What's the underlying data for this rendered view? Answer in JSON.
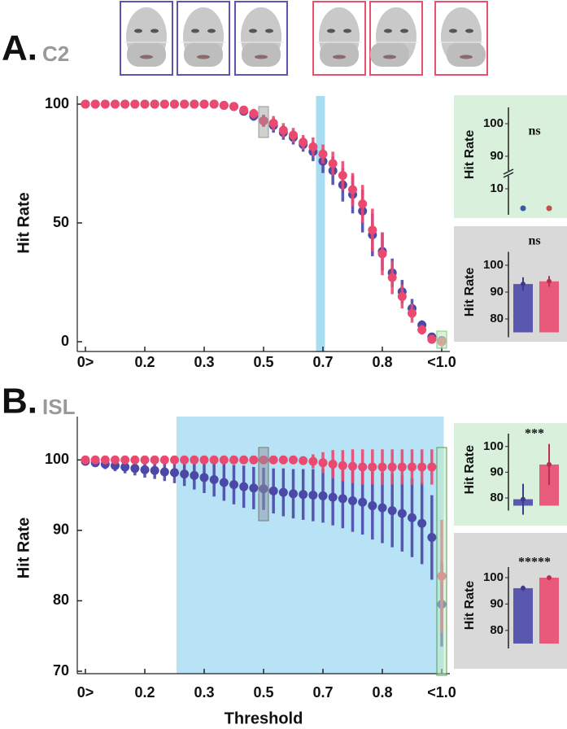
{
  "panels": [
    {
      "letter": "A.",
      "name": "C2"
    },
    {
      "letter": "B.",
      "name": "ISL"
    }
  ],
  "chart_data": [
    {
      "type": "line",
      "ylabel": "Hit Rate",
      "categories": [
        "0>",
        null,
        null,
        null,
        null,
        null,
        "0.2",
        null,
        null,
        null,
        null,
        null,
        "0.3",
        null,
        null,
        null,
        null,
        null,
        "0.5",
        null,
        null,
        null,
        null,
        null,
        "0.7",
        null,
        null,
        null,
        null,
        null,
        "0.8",
        null,
        null,
        null,
        null,
        null,
        "<1.0"
      ],
      "ylim": [
        0,
        100
      ],
      "yticks": [
        0,
        50,
        100
      ],
      "series": [
        {
          "color": "#4b48a8",
          "values": [
            100,
            100,
            100,
            100,
            100,
            100,
            100,
            100,
            100,
            100,
            100,
            100,
            100,
            100,
            99.5,
            99,
            97,
            95,
            93,
            91,
            88,
            86,
            83,
            80,
            76,
            72,
            66,
            62,
            55,
            45,
            38,
            29,
            21,
            14,
            7,
            2,
            0.5
          ],
          "errors": [
            0,
            0,
            0,
            0,
            0,
            0,
            0,
            0,
            0,
            0,
            0,
            0,
            0,
            0,
            0.5,
            1,
            1.5,
            2,
            2.5,
            3,
            3,
            3,
            3,
            4,
            5,
            6,
            7,
            8,
            9,
            9,
            8,
            6,
            5,
            4,
            2,
            1,
            0.5
          ]
        },
        {
          "color": "#ea4a6f",
          "values": [
            100,
            100,
            100,
            100,
            100,
            100,
            100,
            100,
            100,
            100,
            100,
            100,
            100,
            100,
            99.5,
            99,
            97.5,
            96,
            93,
            92,
            89,
            87,
            84,
            82,
            79,
            75,
            70,
            64,
            58,
            47,
            37,
            27,
            19,
            12,
            5,
            1,
            0
          ],
          "errors": [
            0,
            0,
            0,
            0,
            0,
            0,
            0,
            0,
            0,
            0,
            0,
            0,
            0,
            0,
            0.5,
            1,
            1.5,
            2,
            2.5,
            3,
            3,
            3,
            3,
            4,
            4,
            5,
            6,
            7,
            8,
            9,
            9,
            7,
            5,
            4,
            2,
            1,
            0.5
          ]
        }
      ]
    },
    {
      "type": "dot",
      "ylabel": "Hit Rate",
      "annotation": "ns",
      "ylim": [
        0,
        105
      ],
      "ybreak": [
        12,
        85
      ],
      "yticks": [
        10,
        90,
        100
      ],
      "values": [
        4,
        4
      ],
      "colors": [
        "#3a5aa8",
        "#c0504d"
      ]
    },
    {
      "type": "bar",
      "ylabel": "Hit Rate",
      "annotation": "ns",
      "ylim": [
        75,
        105
      ],
      "yticks": [
        80,
        90,
        100
      ],
      "values": [
        93,
        94
      ],
      "errors": [
        2.5,
        2
      ],
      "colors": [
        "#4b48a8",
        "#ea4a6f"
      ]
    },
    {
      "type": "line",
      "ylabel": "Hit Rate",
      "xlabel": "Threshold",
      "categories": [
        "0>",
        null,
        null,
        null,
        null,
        null,
        "0.2",
        null,
        null,
        null,
        null,
        null,
        "0.3",
        null,
        null,
        null,
        null,
        null,
        "0.5",
        null,
        null,
        null,
        null,
        null,
        "0.7",
        null,
        null,
        null,
        null,
        null,
        "0.8",
        null,
        null,
        null,
        null,
        null,
        "<1.0"
      ],
      "ylim": [
        70,
        105
      ],
      "yticks": [
        70,
        80,
        90,
        100
      ],
      "series": [
        {
          "color": "#4b48a8",
          "values": [
            99.8,
            99.6,
            99.4,
            99.2,
            99,
            98.8,
            98.6,
            98.5,
            98.3,
            98.2,
            98,
            97.8,
            97.5,
            97.2,
            96.8,
            96.5,
            96.2,
            96,
            95.9,
            95.6,
            95.4,
            95.2,
            95.1,
            95,
            94.9,
            94.7,
            94.5,
            94.2,
            94,
            93.5,
            93.2,
            92.8,
            92.4,
            91.8,
            91,
            89,
            79.5
          ],
          "errors": [
            0.5,
            0.6,
            0.7,
            0.8,
            0.9,
            1,
            1.1,
            1.2,
            1.3,
            1.5,
            1.7,
            2,
            2.2,
            2.4,
            2.6,
            2.8,
            3,
            3,
            3,
            3.2,
            3.4,
            3.5,
            3.6,
            3.7,
            3.8,
            4,
            4.2,
            4.4,
            4.6,
            4.8,
            5,
            5.2,
            5.4,
            5.6,
            5.8,
            6,
            6
          ]
        },
        {
          "color": "#ea4a6f",
          "values": [
            100,
            100,
            100,
            100,
            100,
            100,
            100,
            100,
            100,
            100,
            100,
            100,
            100,
            100,
            100,
            100,
            100,
            100,
            100,
            100,
            100,
            100,
            99.9,
            99.8,
            99.6,
            99.4,
            99.2,
            99.1,
            99,
            99,
            99,
            99,
            99,
            99,
            99,
            99,
            83.5
          ],
          "errors": [
            0.2,
            0.2,
            0.2,
            0.2,
            0.2,
            0.2,
            0.2,
            0.2,
            0.2,
            0.2,
            0.2,
            0.2,
            0.2,
            0.2,
            0.2,
            0.2,
            0.2,
            0.2,
            0.2,
            0.2,
            0.3,
            0.4,
            0.5,
            1,
            1.5,
            2,
            2.2,
            2.4,
            2.5,
            2.5,
            2.5,
            2.5,
            2.5,
            2.5,
            2.5,
            2.5,
            8
          ]
        }
      ]
    },
    {
      "type": "bar",
      "ylabel": "Hit Rate",
      "annotation": "***",
      "ylim": [
        77,
        105
      ],
      "yticks": [
        80,
        90,
        100
      ],
      "values": [
        79.5,
        93
      ],
      "errors": [
        6,
        8
      ],
      "colors": [
        "#4b48a8",
        "#ea4a6f"
      ]
    },
    {
      "type": "bar",
      "ylabel": "Hit Rate",
      "annotation": "*****",
      "ylim": [
        75,
        104
      ],
      "yticks": [
        80,
        90,
        100
      ],
      "values": [
        96,
        100
      ],
      "errors": [
        1,
        0.3
      ],
      "colors": [
        "#4b48a8",
        "#ea4a6f"
      ]
    }
  ]
}
